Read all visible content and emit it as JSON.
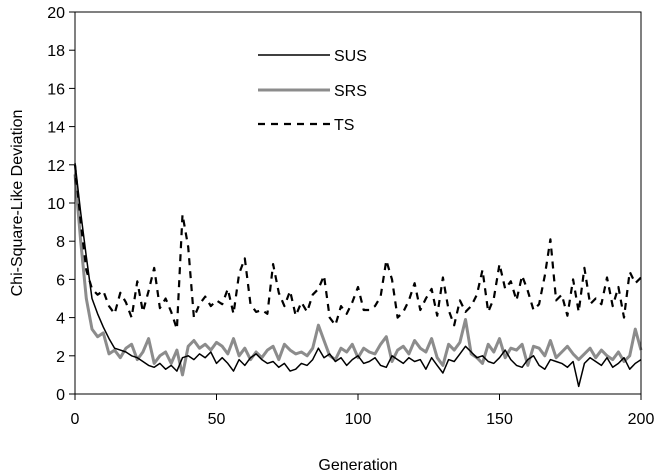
{
  "chart_data": {
    "type": "line",
    "title": "",
    "xlabel": "Generation",
    "ylabel": "Chi-Square-Like Deviation",
    "xlim": [
      0,
      200
    ],
    "ylim": [
      0,
      20
    ],
    "xticks": [
      0,
      50,
      100,
      150,
      200
    ],
    "yticks": [
      0,
      2,
      4,
      6,
      8,
      10,
      12,
      14,
      16,
      18,
      20
    ],
    "grid": false,
    "legend_position": "top-center",
    "x": [
      0,
      2,
      4,
      6,
      8,
      10,
      12,
      14,
      16,
      18,
      20,
      22,
      24,
      26,
      28,
      30,
      32,
      34,
      36,
      38,
      40,
      42,
      44,
      46,
      48,
      50,
      52,
      54,
      56,
      58,
      60,
      62,
      64,
      66,
      68,
      70,
      72,
      74,
      76,
      78,
      80,
      82,
      84,
      86,
      88,
      90,
      92,
      94,
      96,
      98,
      100,
      102,
      104,
      106,
      108,
      110,
      112,
      114,
      116,
      118,
      120,
      122,
      124,
      126,
      128,
      130,
      132,
      134,
      136,
      138,
      140,
      142,
      144,
      146,
      148,
      150,
      152,
      154,
      156,
      158,
      160,
      162,
      164,
      166,
      168,
      170,
      172,
      174,
      176,
      178,
      180,
      182,
      184,
      186,
      188,
      190,
      192,
      194,
      196,
      198,
      200
    ],
    "series": [
      {
        "name": "SUS",
        "color": "#000000",
        "style": "solid",
        "values": [
          12.1,
          9.5,
          7.2,
          5.0,
          4.2,
          3.5,
          2.9,
          2.4,
          2.3,
          2.2,
          2.0,
          1.9,
          1.7,
          1.5,
          1.4,
          1.6,
          1.3,
          1.5,
          1.2,
          1.9,
          2.0,
          1.8,
          2.1,
          1.9,
          2.2,
          1.6,
          1.9,
          1.6,
          1.2,
          1.8,
          1.5,
          1.9,
          2.1,
          1.8,
          1.6,
          1.7,
          1.4,
          1.6,
          1.2,
          1.3,
          1.6,
          1.5,
          1.8,
          2.4,
          1.9,
          2.1,
          1.7,
          1.9,
          1.5,
          1.8,
          2.0,
          1.6,
          1.7,
          1.9,
          1.5,
          1.4,
          2.0,
          1.8,
          1.6,
          1.9,
          1.7,
          1.8,
          1.3,
          1.9,
          1.5,
          1.1,
          1.8,
          1.7,
          2.1,
          2.5,
          2.2,
          1.9,
          2.0,
          1.7,
          1.6,
          1.9,
          2.3,
          1.8,
          1.5,
          1.4,
          1.8,
          2.0,
          1.5,
          1.3,
          1.8,
          1.7,
          1.6,
          1.4,
          1.7,
          0.4,
          1.6,
          1.9,
          1.7,
          1.5,
          1.9,
          1.4,
          1.6,
          1.9,
          1.3,
          1.6,
          1.8
        ]
      },
      {
        "name": "SRS",
        "color": "#8c8c8c",
        "style": "solid",
        "values": [
          11.5,
          8.0,
          5.0,
          3.4,
          3.0,
          3.2,
          2.1,
          2.3,
          1.9,
          2.4,
          2.6,
          1.8,
          2.2,
          2.9,
          1.6,
          2.0,
          2.2,
          1.6,
          2.3,
          1.0,
          2.5,
          2.8,
          2.4,
          2.6,
          2.3,
          2.7,
          2.5,
          2.1,
          2.9,
          2.0,
          2.4,
          1.8,
          2.2,
          1.9,
          2.3,
          2.5,
          1.8,
          2.6,
          2.3,
          2.1,
          2.2,
          2.0,
          2.4,
          3.6,
          2.8,
          2.0,
          1.8,
          2.4,
          2.2,
          2.6,
          1.9,
          2.4,
          2.2,
          2.1,
          2.6,
          3.0,
          1.7,
          2.3,
          2.5,
          2.1,
          2.8,
          2.4,
          2.2,
          2.9,
          1.9,
          1.5,
          2.6,
          2.3,
          2.7,
          3.9,
          2.1,
          1.9,
          1.6,
          2.6,
          2.2,
          2.9,
          1.9,
          2.4,
          2.3,
          2.6,
          1.5,
          2.5,
          2.4,
          2.0,
          2.8,
          1.9,
          2.2,
          2.5,
          2.1,
          1.8,
          2.1,
          2.4,
          1.9,
          2.3,
          2.0,
          1.8,
          2.2,
          1.7,
          2.0,
          3.4,
          2.3
        ]
      },
      {
        "name": "TS",
        "color": "#000000",
        "style": "dashed",
        "values": [
          12.0,
          9.0,
          6.5,
          5.5,
          5.2,
          5.4,
          4.6,
          4.2,
          5.3,
          4.8,
          4.0,
          5.9,
          4.3,
          5.4,
          6.6,
          4.5,
          5.0,
          4.3,
          3.4,
          9.4,
          7.7,
          4.0,
          4.7,
          5.1,
          4.6,
          4.9,
          4.7,
          5.5,
          4.2,
          6.3,
          7.1,
          4.7,
          4.3,
          4.4,
          4.2,
          6.8,
          5.3,
          4.6,
          5.4,
          4.1,
          4.8,
          4.3,
          5.2,
          5.5,
          6.2,
          4.0,
          3.6,
          4.6,
          4.2,
          4.8,
          5.6,
          4.4,
          4.4,
          4.6,
          5.1,
          7.0,
          6.0,
          4.0,
          4.3,
          4.9,
          5.8,
          4.4,
          5.0,
          5.5,
          4.1,
          6.1,
          4.4,
          3.6,
          4.9,
          4.3,
          4.6,
          5.2,
          6.5,
          4.3,
          5.0,
          6.8,
          5.5,
          5.9,
          4.9,
          6.2,
          5.4,
          4.4,
          4.7,
          6.2,
          8.1,
          4.9,
          5.2,
          4.1,
          6.0,
          4.3,
          6.6,
          4.7,
          5.0,
          4.7,
          6.1,
          4.6,
          5.6,
          4.0,
          6.4,
          5.8,
          6.1
        ]
      }
    ]
  }
}
